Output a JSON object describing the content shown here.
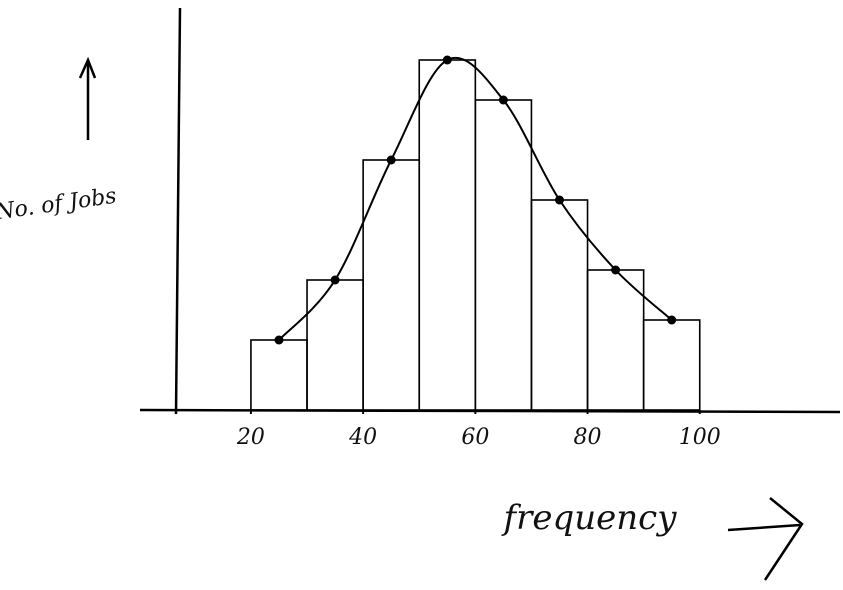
{
  "chart_data": {
    "type": "histogram",
    "x_label": "frequency",
    "y_label": "No. of Jobs",
    "bins": [
      20,
      30,
      40,
      50,
      60,
      70,
      80,
      90,
      100
    ],
    "values": [
      7,
      13,
      25,
      35,
      31,
      21,
      14,
      9
    ],
    "xlim": [
      7,
      125
    ],
    "ylim": [
      0,
      36
    ],
    "xticks": [
      20,
      40,
      60,
      80,
      100
    ],
    "color": "#000000"
  }
}
